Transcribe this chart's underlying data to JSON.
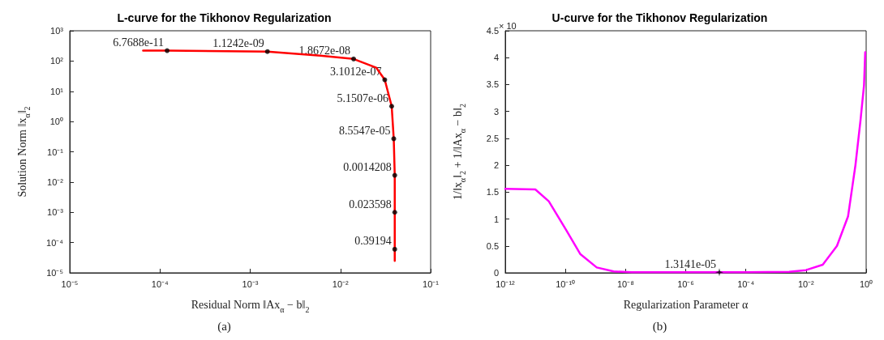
{
  "chart_data": [
    {
      "type": "line",
      "title": "L-curve for the Tikhonov Regularization",
      "xlabel": "Residual Norm ‖Ax$_{α}$ − b‖$_{2}$",
      "ylabel": "Solution Norm ‖x$_{α}$‖$_{2}$",
      "log": "xy",
      "xlim": [
        1e-05,
        0.1
      ],
      "ylim": [
        1e-05,
        1000
      ],
      "xticks": [
        {
          "value": 1e-05,
          "label": "10⁻⁵"
        },
        {
          "value": 0.0001,
          "label": "10⁻⁴"
        },
        {
          "value": 0.001,
          "label": "10⁻³"
        },
        {
          "value": 0.01,
          "label": "10⁻²"
        },
        {
          "value": 0.1,
          "label": "10⁻¹"
        }
      ],
      "yticks": [
        {
          "value": 1e-05,
          "label": "10⁻⁵"
        },
        {
          "value": 0.0001,
          "label": "10⁻⁴"
        },
        {
          "value": 0.001,
          "label": "10⁻³"
        },
        {
          "value": 0.01,
          "label": "10⁻²"
        },
        {
          "value": 0.1,
          "label": "10⁻¹"
        },
        {
          "value": 1,
          "label": "10⁰"
        },
        {
          "value": 10,
          "label": "10¹"
        },
        {
          "value": 100,
          "label": "10²"
        },
        {
          "value": 1000,
          "label": "10³"
        }
      ],
      "series": [
        {
          "color": "#ff0000",
          "marker": "none",
          "x": [
            6.5e-05,
            0.00012,
            0.00155,
            0.006,
            0.014,
            0.025,
            0.031,
            0.037,
            0.039,
            0.04,
            0.04,
            0.04,
            0.04
          ],
          "values": [
            220,
            220,
            205,
            150,
            117,
            60,
            24,
            3.2,
            0.27,
            0.0167,
            0.001,
            6e-05,
            2.5e-05
          ]
        },
        {
          "type": "scatter",
          "color": "#000000",
          "marker": "circle",
          "x": [
            0.00012,
            0.00155,
            0.014,
            0.031,
            0.037,
            0.039,
            0.04,
            0.04,
            0.04
          ],
          "values": [
            220,
            205,
            117,
            24,
            3.2,
            0.27,
            0.0167,
            0.001,
            6e-05
          ]
        }
      ],
      "annotations": [
        {
          "text": "6.7688e-11",
          "x": 0.00012,
          "y": 220
        },
        {
          "text": "1.1242e-09",
          "x": 0.00155,
          "y": 205
        },
        {
          "text": "1.8672e-08",
          "x": 0.014,
          "y": 117
        },
        {
          "text": "3.1012e-07",
          "x": 0.031,
          "y": 24
        },
        {
          "text": "5.1507e-06",
          "x": 0.037,
          "y": 3.2
        },
        {
          "text": "8.5547e-05",
          "x": 0.039,
          "y": 0.27
        },
        {
          "text": "0.0014208",
          "x": 0.04,
          "y": 0.0167
        },
        {
          "text": "0.023598",
          "x": 0.04,
          "y": 0.001
        },
        {
          "text": "0.39194",
          "x": 0.04,
          "y": 6e-05
        },
        "(a)"
      ]
    },
    {
      "type": "line",
      "title": "U-curve for the Tikhonov Regularization",
      "xlabel": "Regularization Parameter α",
      "ylabel": "1/‖x$_{α}$‖$_{2}$ + 1/‖Ax$_{α}$ − b‖$_{2}$",
      "log": "x",
      "xlim": [
        1e-12,
        1
      ],
      "ylim": [
        0,
        4.5
      ],
      "xticks": [
        {
          "value": 1e-12,
          "label": "10⁻¹²"
        },
        {
          "value": 1e-10,
          "label": "10⁻¹⁰"
        },
        {
          "value": 1e-08,
          "label": "10⁻⁸"
        },
        {
          "value": 1e-06,
          "label": "10⁻⁶"
        },
        {
          "value": 0.0001,
          "label": "10⁻⁴"
        },
        {
          "value": 0.01,
          "label": "10⁻²"
        },
        {
          "value": 1,
          "label": "10⁰"
        }
      ],
      "yticks": [
        0,
        0.5,
        1,
        1.5,
        2,
        2.5,
        3,
        3.5,
        4,
        4.5
      ],
      "series": [
        {
          "color": "#ff00ff",
          "marker": "none",
          "x": [
            1e-12,
            1e-11,
            2.8e-11,
            1.05e-10,
            3.1e-10,
            1.1e-09,
            4e-09,
            1.6e-08,
            1e-06,
            0.0001,
            0.00275,
            0.01,
            0.036,
            0.107,
            0.25,
            0.44,
            0.65,
            0.85,
            0.93
          ],
          "values": [
            1.56,
            1.55,
            1.33,
            0.8,
            0.35,
            0.1,
            0.025,
            0.01,
            0.01,
            0.01,
            0.02,
            0.05,
            0.15,
            0.5,
            1.05,
            2.0,
            2.84,
            3.49,
            4.1
          ]
        },
        {
          "type": "scatter",
          "color": "#000000",
          "marker": "star",
          "x": [
            1.3141e-05
          ],
          "values": [
            0.01
          ]
        }
      ],
      "annotations": [
        {
          "text": "1.3141e-05",
          "x": 1.3141e-05,
          "y": 0.01
        },
        "× 10",
        "(b)"
      ]
    }
  ]
}
